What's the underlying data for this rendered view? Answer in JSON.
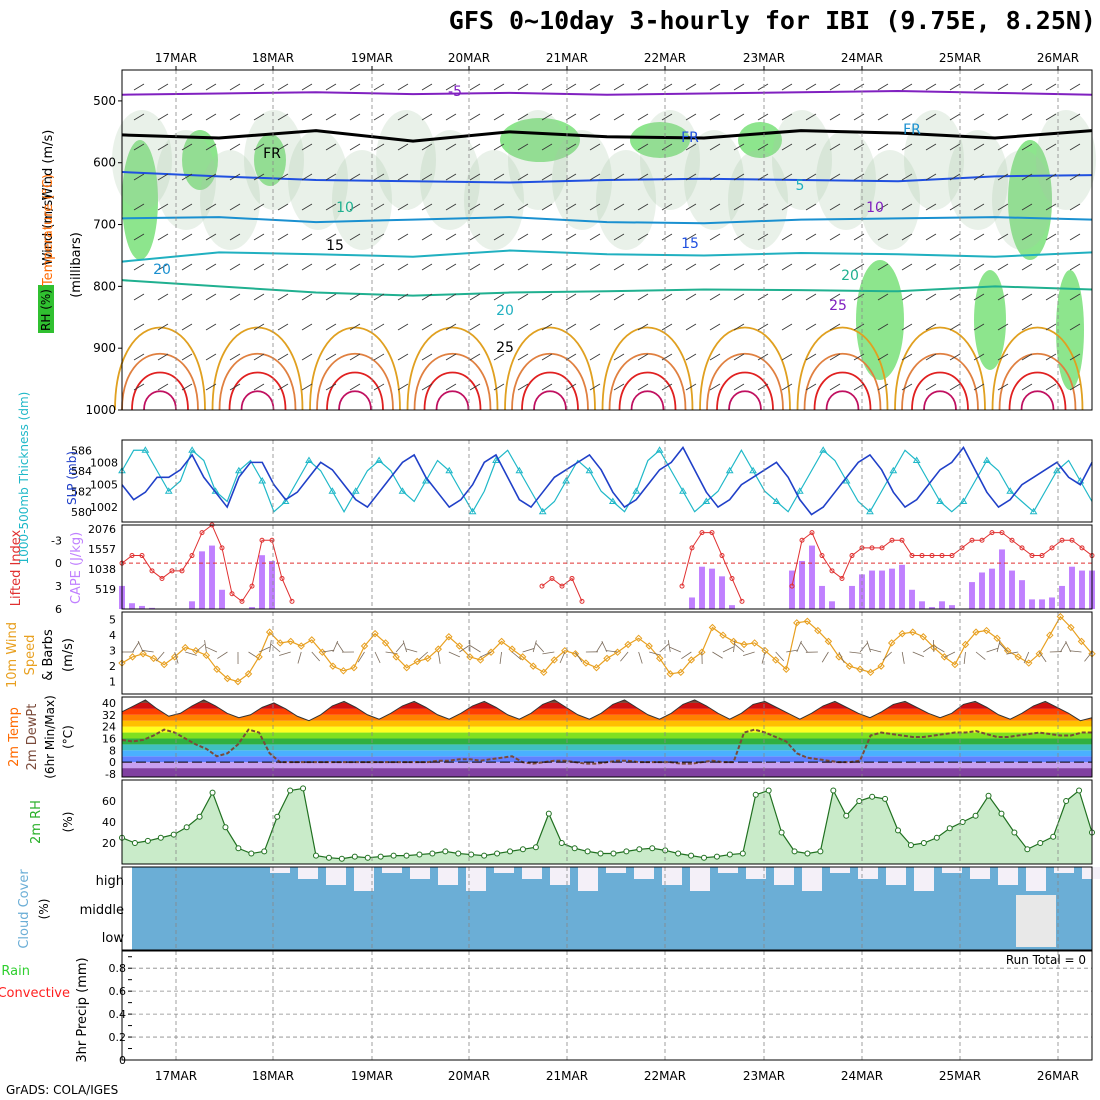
{
  "title": "GFS 0~10day 3-hourly for IBI (9.75E, 8.25N)",
  "credit": "GrADS: COLA/IGES",
  "colors": {
    "rh": "#2fcf2f",
    "temperature": "#ff6a00",
    "wind": "#000000",
    "thickness": "#1fb8c8",
    "slp": "#2040c8",
    "lifted_index": "#e03030",
    "cape": "#c080ff",
    "wind10m": "#e8a020",
    "rh2m": "#2ab02a",
    "cloud": "#6baed6",
    "precip_total": "#2fcf2f",
    "precip_conv": "#ff2020"
  },
  "chart_data": [
    {
      "type": "heatmap",
      "panel": "upper-air",
      "x": [
        "17MAR",
        "18MAR",
        "19MAR",
        "20MAR",
        "21MAR",
        "22MAR",
        "23MAR",
        "24MAR",
        "25MAR",
        "26MAR"
      ],
      "ylabel_parts": [
        "RH (%)",
        "Temperature (°C)",
        "Wind (m/s)"
      ],
      "ylabel_unit": "(millibars)",
      "yticks": [
        "500",
        "600",
        "700",
        "800",
        "900",
        "1000"
      ],
      "ylim": [
        450,
        1000
      ],
      "isotherm_labels": [
        "-5",
        "FR",
        "FR",
        "FR",
        "5",
        "10",
        "10",
        "15",
        "15",
        "20",
        "20",
        "20",
        "25",
        "25"
      ],
      "isotherms_mb": [
        {
          "label": "-5",
          "values": [
            490,
            488,
            486,
            489,
            487,
            490,
            488,
            486,
            484,
            487,
            490
          ]
        },
        {
          "label": "FR",
          "values": [
            555,
            560,
            548,
            565,
            550,
            558,
            560,
            548,
            552,
            560,
            548
          ]
        },
        {
          "label": "5",
          "values": [
            615,
            622,
            628,
            630,
            632,
            628,
            626,
            628,
            630,
            622,
            620
          ]
        },
        {
          "label": "10",
          "values": [
            690,
            688,
            696,
            692,
            688,
            696,
            698,
            692,
            690,
            688,
            692
          ]
        },
        {
          "label": "15",
          "values": [
            760,
            745,
            748,
            752,
            742,
            748,
            750,
            746,
            748,
            752,
            745
          ]
        },
        {
          "label": "20",
          "values": [
            790,
            800,
            810,
            815,
            810,
            808,
            805,
            806,
            808,
            800,
            805
          ]
        }
      ]
    },
    {
      "type": "line",
      "panel": "thickness-slp",
      "ylabel_left": "1000-500mb Thickness (dm)",
      "ylabel_right": "SLP (mb)",
      "yticks_left": [
        "586",
        "584",
        "582",
        "580"
      ],
      "yticks_right": [
        "1008",
        "1005",
        "1002"
      ],
      "series": [
        {
          "name": "Thickness",
          "values": [
            584,
            586,
            586,
            584,
            582,
            583,
            586,
            585,
            582,
            581,
            584,
            585,
            583,
            580,
            581,
            583,
            585,
            584,
            582,
            580,
            582,
            584,
            585,
            584,
            582,
            581,
            583,
            585,
            584,
            582,
            580,
            582,
            585,
            586,
            584,
            582,
            580,
            581,
            583,
            585,
            584,
            582,
            581,
            580,
            582,
            585,
            586,
            584,
            582,
            580,
            581,
            582,
            584,
            586,
            584,
            582,
            581,
            580,
            582,
            584,
            586,
            585,
            583,
            581,
            580,
            582,
            584,
            586,
            585,
            583,
            581,
            580,
            581,
            583,
            585,
            584,
            582,
            581,
            580,
            582,
            584,
            585,
            583,
            581
          ]
        },
        {
          "name": "SLP",
          "values": [
            1005,
            1003,
            1004,
            1006,
            1006,
            1007,
            1009,
            1006,
            1004,
            1002,
            1006,
            1008,
            1008,
            1005,
            1003,
            1004,
            1006,
            1008,
            1007,
            1005,
            1003,
            1002,
            1004,
            1006,
            1008,
            1009,
            1006,
            1004,
            1002,
            1003,
            1005,
            1008,
            1009,
            1006,
            1003,
            1002,
            1004,
            1006,
            1007,
            1008,
            1009,
            1007,
            1004,
            1002,
            1003,
            1005,
            1007,
            1008,
            1010,
            1007,
            1004,
            1002,
            1003,
            1005,
            1006,
            1007,
            1008,
            1006,
            1003,
            1001,
            1002,
            1004,
            1006,
            1008,
            1009,
            1007,
            1004,
            1002,
            1003,
            1005,
            1007,
            1008,
            1010,
            1007,
            1004,
            1002,
            1003,
            1005,
            1006,
            1007,
            1008,
            1006,
            1005,
            1008
          ]
        }
      ]
    },
    {
      "type": "bar",
      "panel": "cape-li",
      "ylabel_left": "Lifted Index",
      "ylabel_right": "CAPE (J/kg)",
      "yticks_left": [
        "-3",
        "0",
        "3",
        "6"
      ],
      "yticks_right": [
        "2076",
        "1557",
        "1038",
        "519"
      ],
      "series": [
        {
          "name": "CAPE",
          "values": [
            600,
            150,
            80,
            30,
            0,
            0,
            0,
            200,
            1500,
            1650,
            500,
            0,
            0,
            50,
            1400,
            1250,
            0,
            0,
            0,
            0,
            0,
            0,
            0,
            0,
            0,
            0,
            0,
            0,
            0,
            0,
            0,
            0,
            0,
            0,
            0,
            0,
            0,
            0,
            0,
            0,
            0,
            0,
            0,
            0,
            0,
            0,
            0,
            0,
            0,
            0,
            0,
            0,
            0,
            0,
            0,
            0,
            0,
            300,
            1100,
            1050,
            850,
            100,
            0,
            0,
            0,
            0,
            0,
            1000,
            1250,
            1650,
            600,
            200,
            0,
            600,
            900,
            1000,
            1000,
            1050,
            1150,
            500,
            200,
            50,
            200,
            100,
            0,
            700,
            950,
            1050,
            1550,
            1000,
            750,
            250,
            250,
            300,
            600,
            1100,
            1000,
            1000
          ]
        },
        {
          "name": "Lifted Index",
          "values": [
            0,
            -1,
            -1,
            1,
            2,
            1,
            1,
            -1,
            -4,
            -5,
            -2,
            4,
            5,
            3,
            -3,
            -3,
            2,
            5,
            6,
            6,
            6,
            6,
            6,
            6,
            6,
            6,
            6,
            6,
            6,
            6,
            6,
            6,
            6,
            6,
            6,
            6,
            6,
            6,
            6,
            6,
            6,
            6,
            3,
            2,
            3,
            2,
            5,
            6,
            6,
            6,
            6,
            6,
            6,
            6,
            6,
            6,
            3,
            -2,
            -4,
            -4,
            -1,
            2,
            5,
            6,
            6,
            6,
            6,
            3,
            -3,
            -4,
            -1,
            1,
            2,
            -1,
            -2,
            -2,
            -2,
            -3,
            -3,
            -1,
            -1,
            -1,
            -1,
            -1,
            -2,
            -3,
            -3,
            -4,
            -4,
            -3,
            -2,
            -1,
            -1,
            -2,
            -3,
            -3,
            -2,
            -1
          ]
        }
      ]
    },
    {
      "type": "line",
      "panel": "wind10m",
      "ylabel_parts": [
        "10m Wind",
        "Speed",
        "& Barbs"
      ],
      "yunit": "(m/s)",
      "yticks": [
        "5",
        "4",
        "3",
        "2",
        "1"
      ],
      "series": [
        {
          "name": "Speed",
          "values": [
            2.2,
            2.6,
            2.8,
            2.5,
            2.1,
            2.6,
            3.2,
            3.0,
            2.7,
            1.8,
            1.2,
            1.0,
            1.5,
            2.6,
            4.2,
            3.5,
            3.6,
            3.3,
            3.7,
            2.9,
            2.0,
            1.7,
            1.9,
            3.3,
            4.1,
            3.5,
            2.6,
            1.9,
            2.3,
            2.5,
            3.1,
            3.9,
            3.3,
            2.6,
            2.4,
            2.9,
            3.6,
            3.1,
            2.6,
            2.0,
            1.6,
            2.4,
            3.0,
            2.8,
            2.2,
            1.9,
            2.5,
            2.9,
            3.4,
            3.8,
            3.3,
            2.5,
            1.5,
            1.6,
            2.4,
            2.9,
            4.5,
            4.0,
            3.6,
            3.4,
            3.5,
            3.0,
            2.4,
            1.8,
            4.8,
            4.9,
            4.3,
            3.6,
            2.6,
            2.0,
            1.8,
            1.6,
            2.0,
            3.5,
            4.1,
            4.2,
            3.9,
            3.2,
            2.6,
            2.1,
            3.4,
            4.2,
            4.3,
            3.8,
            3.0,
            2.6,
            2.2,
            2.8,
            4.0,
            5.2,
            4.5,
            3.6,
            2.8
          ]
        }
      ]
    },
    {
      "type": "area",
      "panel": "temp-dewpt",
      "ylabel_parts": [
        "2m Temp",
        "2m DewPt",
        "(6hr Min/Max)"
      ],
      "yunit": "(°C)",
      "yticks": [
        "40",
        "32",
        "24",
        "16",
        "8",
        "0",
        "-8"
      ],
      "series": [
        {
          "name": "2m Temp",
          "values": [
            34,
            38,
            42,
            36,
            31,
            33,
            38,
            42,
            38,
            33,
            30,
            32,
            37,
            40,
            36,
            31,
            28,
            32,
            38,
            41,
            37,
            32,
            29,
            33,
            38,
            41,
            37,
            32,
            29,
            33,
            38,
            41,
            37,
            32,
            29,
            33,
            39,
            42,
            37,
            32,
            29,
            33,
            39,
            42,
            37,
            32,
            29,
            33,
            39,
            42,
            38,
            33,
            29,
            33,
            39,
            41,
            37,
            33,
            29,
            33,
            38,
            41,
            37,
            33,
            30,
            34,
            39,
            41,
            37,
            33,
            30,
            33,
            39,
            41,
            37,
            32,
            29,
            33,
            38,
            41,
            37,
            33,
            28,
            30
          ]
        },
        {
          "name": "2m DewPt",
          "values": [
            15,
            14,
            15,
            18,
            22,
            20,
            16,
            12,
            9,
            4,
            6,
            12,
            22,
            20,
            6,
            0,
            0,
            0,
            0,
            0,
            0,
            0,
            0,
            0,
            0,
            0,
            0,
            0,
            0,
            0,
            1,
            1,
            2,
            2,
            1,
            2,
            3,
            4,
            0,
            -1,
            0,
            1,
            1,
            0,
            -1,
            -1,
            0,
            1,
            1,
            0,
            0,
            0,
            0,
            -1,
            -1,
            0,
            1,
            0,
            0,
            20,
            22,
            20,
            17,
            14,
            6,
            3,
            2,
            1,
            0,
            0,
            1,
            18,
            20,
            19,
            18,
            17,
            17,
            18,
            19,
            20,
            20,
            21,
            19,
            17,
            17,
            18,
            19,
            20,
            19,
            18,
            18,
            20,
            20
          ]
        }
      ]
    },
    {
      "type": "area",
      "panel": "rh2m",
      "ylabel": "2m RH",
      "yunit": "(%)",
      "yticks": [
        "60",
        "40",
        "20"
      ],
      "series": [
        {
          "name": "2m RH",
          "values": [
            25,
            20,
            22,
            25,
            28,
            35,
            45,
            68,
            35,
            15,
            10,
            12,
            45,
            70,
            72,
            8,
            6,
            5,
            7,
            6,
            7,
            8,
            8,
            9,
            10,
            12,
            10,
            9,
            8,
            10,
            12,
            14,
            16,
            48,
            20,
            15,
            12,
            10,
            10,
            12,
            14,
            15,
            13,
            10,
            8,
            6,
            7,
            9,
            10,
            66,
            70,
            30,
            12,
            10,
            12,
            70,
            46,
            60,
            64,
            62,
            32,
            18,
            20,
            25,
            34,
            40,
            46,
            65,
            48,
            30,
            14,
            20,
            26,
            60,
            70,
            30
          ]
        }
      ]
    },
    {
      "type": "area",
      "panel": "cloud",
      "ylabel": "Cloud Cover",
      "yunit": "(%)",
      "yticks": [
        "high",
        "middle",
        "low"
      ]
    },
    {
      "type": "bar",
      "panel": "precip",
      "ylabel_parts": [
        "Total / Rain",
        "Convective"
      ],
      "ylabel_unit": "3hr Precip (mm)",
      "yticks": [
        "0.8",
        "0.6",
        "0.4",
        "0.2",
        "0"
      ],
      "run_total": "Run Total = 0",
      "series": [
        {
          "name": "Total",
          "values": []
        },
        {
          "name": "Convective",
          "values": []
        }
      ]
    }
  ]
}
